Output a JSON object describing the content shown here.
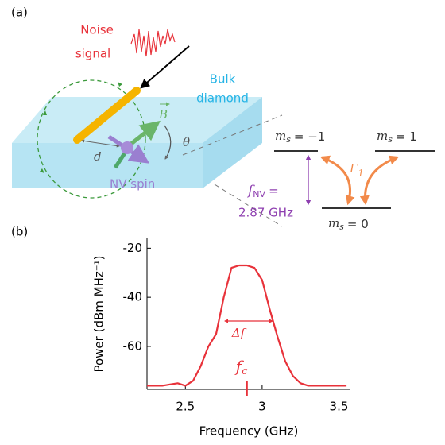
{
  "panel_a": {
    "label": "(a)",
    "noise_label": [
      "Noise",
      "signal"
    ],
    "diamond_label": [
      "Bulk",
      "diamond"
    ],
    "field_label": "B",
    "angle_label": "θ",
    "distance_label": "d",
    "spin_label": "NV spin",
    "levels": [
      {
        "symbol": "m",
        "sub": "s",
        "rest": "= −1"
      },
      {
        "symbol": "m",
        "sub": "s",
        "rest": "= 1"
      },
      {
        "symbol": "m",
        "sub": "s",
        "rest": "= 0"
      }
    ],
    "transition": {
      "symbol": "f",
      "sub": "NV",
      "rest": "=",
      "frequency": "2.87 GHz"
    },
    "rate": {
      "symbol": "Γ",
      "sub": "1"
    }
  },
  "panel_b_label": "(b)",
  "chart_data": {
    "type": "line",
    "xlabel": "Frequency (GHz)",
    "ylabel": "Power (dBm MHz⁻¹)",
    "color": "#e8323a",
    "x": [
      2.25,
      2.3,
      2.35,
      2.4,
      2.45,
      2.5,
      2.55,
      2.6,
      2.65,
      2.7,
      2.75,
      2.8,
      2.85,
      2.9,
      2.95,
      3.0,
      3.05,
      3.1,
      3.15,
      3.2,
      3.25,
      3.3,
      3.35,
      3.4,
      3.45,
      3.5,
      3.55
    ],
    "values": [
      -76,
      -76,
      -76,
      -75.5,
      -75,
      -76,
      -74,
      -68,
      -60,
      -55,
      -40,
      -28,
      -27,
      -27,
      -28,
      -33,
      -45,
      -56,
      -66,
      -72,
      -75,
      -76,
      -76,
      -76,
      -76,
      -76,
      -76
    ],
    "xlim": [
      2.25,
      3.57
    ],
    "ylim": [
      -77.5,
      -16
    ],
    "xticks": [
      2.5,
      3,
      3.5
    ],
    "yticks": [
      -20,
      -40,
      -60
    ],
    "width_label": "Δf",
    "center_label": {
      "symbol": "f",
      "sub": "c"
    },
    "center_marker": 2.9
  }
}
